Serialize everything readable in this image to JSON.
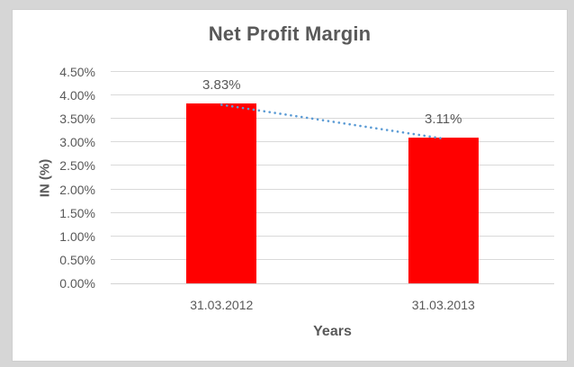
{
  "window": {
    "outer_background": "#d6d6d6",
    "chart_background": "#ffffff",
    "text_color": "#595959",
    "gridline_color": "#d9d9d9",
    "axis_line_color": "#d3d3d3"
  },
  "chart_data": {
    "type": "bar",
    "title": "Net Profit Margin",
    "xlabel": "Years",
    "ylabel": "IN (%)",
    "categories": [
      "31.03.2012",
      "31.03.2013"
    ],
    "values": [
      3.83,
      3.11
    ],
    "value_labels": [
      "3.83%",
      "3.11%"
    ],
    "unit": "%",
    "ylim": [
      0,
      4.5
    ],
    "y_tick_step": 0.5,
    "y_tick_labels": [
      "0.00%",
      "0.50%",
      "1.00%",
      "1.50%",
      "2.00%",
      "2.50%",
      "3.00%",
      "3.50%",
      "4.00%",
      "4.50%"
    ],
    "grid": true,
    "legend": "none",
    "bar_color": "#ff0000",
    "trendline": {
      "type": "linear",
      "style": "dotted",
      "color": "#5b9bd5",
      "from_value": 3.83,
      "to_value": 3.11
    }
  }
}
